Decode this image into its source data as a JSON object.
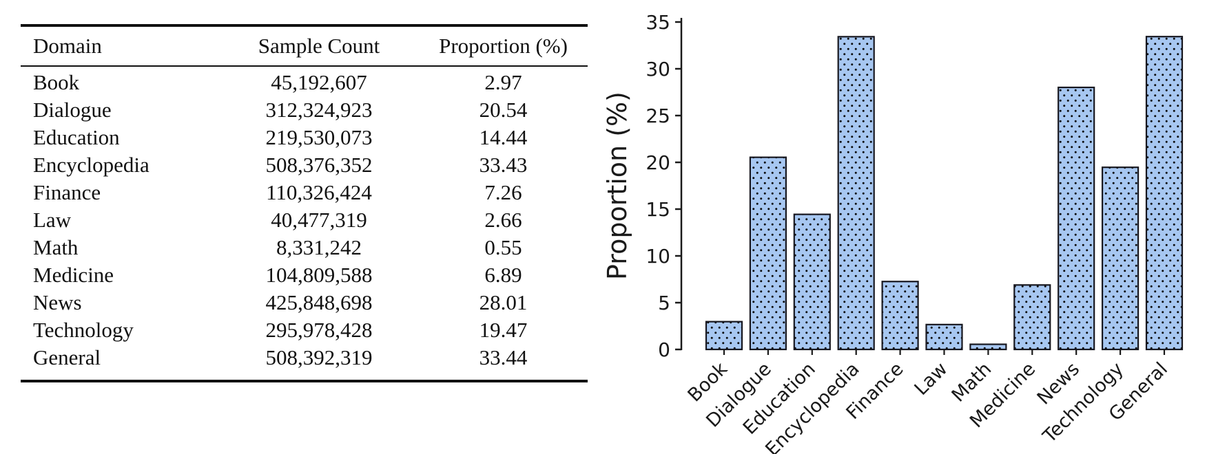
{
  "table": {
    "columns": [
      "Domain",
      "Sample Count",
      "Proportion (%)"
    ],
    "rows": [
      {
        "domain": "Book",
        "sample_count": "45,192,607",
        "proportion": "2.97"
      },
      {
        "domain": "Dialogue",
        "sample_count": "312,324,923",
        "proportion": "20.54"
      },
      {
        "domain": "Education",
        "sample_count": "219,530,073",
        "proportion": "14.44"
      },
      {
        "domain": "Encyclopedia",
        "sample_count": "508,376,352",
        "proportion": "33.43"
      },
      {
        "domain": "Finance",
        "sample_count": "110,326,424",
        "proportion": "7.26"
      },
      {
        "domain": "Law",
        "sample_count": "40,477,319",
        "proportion": "2.66"
      },
      {
        "domain": "Math",
        "sample_count": "8,331,242",
        "proportion": "0.55"
      },
      {
        "domain": "Medicine",
        "sample_count": "104,809,588",
        "proportion": "6.89"
      },
      {
        "domain": "News",
        "sample_count": "425,848,698",
        "proportion": "28.01"
      },
      {
        "domain": "Technology",
        "sample_count": "295,978,428",
        "proportion": "19.47"
      },
      {
        "domain": "General",
        "sample_count": "508,392,319",
        "proportion": "33.44"
      }
    ]
  },
  "chart_data": {
    "type": "bar",
    "categories": [
      "Book",
      "Dialogue",
      "Education",
      "Encyclopedia",
      "Finance",
      "Law",
      "Math",
      "Medicine",
      "News",
      "Technology",
      "General"
    ],
    "values": [
      2.97,
      20.54,
      14.44,
      33.43,
      7.26,
      2.66,
      0.55,
      6.89,
      28.01,
      19.47,
      33.44
    ],
    "title": "",
    "xlabel": "",
    "ylabel": "Proportion (%)",
    "ylim": [
      0,
      35
    ],
    "yticks": [
      0,
      5,
      10,
      15,
      20,
      25,
      30,
      35
    ],
    "grid": false,
    "legend": "none",
    "bar_fill": "#a7c7f1",
    "bar_edge": "#17171f",
    "hatch": "dots",
    "hatch_color": "#0a0a0a",
    "tick_label_rotation": 45
  }
}
